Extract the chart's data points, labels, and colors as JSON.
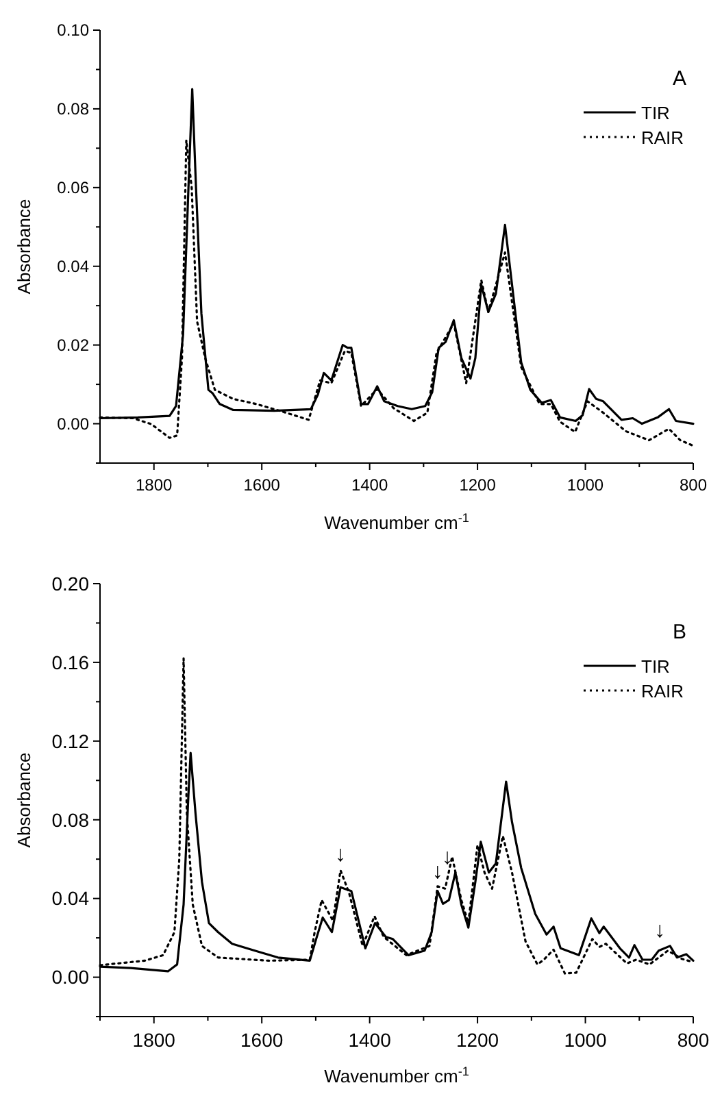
{
  "chart_data": [
    {
      "type": "line",
      "title": "A",
      "xlabel": "Wavenumber cm$^{-1}$",
      "ylabel": "Absorbance",
      "xlim": [
        1900,
        800
      ],
      "ylim": [
        -0.01,
        0.1
      ],
      "xticks": [
        1800,
        {
          "value": 1700,
          "label": null
        },
        1600,
        {
          "value": 1500,
          "label": null
        },
        1400,
        {
          "value": 1300,
          "label": null
        },
        1200,
        {
          "value": 1100,
          "label": null
        },
        1000,
        {
          "value": 900,
          "label": null
        },
        800
      ],
      "yticks": [
        {
          "value": -0.01,
          "label": null
        },
        {
          "value": 0,
          "label": "0.00"
        },
        {
          "value": 0.01,
          "label": null
        },
        0.02,
        {
          "value": 0.03,
          "label": null
        },
        0.04,
        {
          "value": 0.05,
          "label": null
        },
        0.06,
        {
          "value": 0.07,
          "label": null
        },
        0.08,
        {
          "value": 0.09,
          "label": null
        },
        {
          "value": 0.1,
          "label": "0.10"
        }
      ],
      "grid": false,
      "legend": "top right",
      "series": [
        {
          "name": "TIR",
          "color": "#000000",
          "line_style": "solid",
          "x": [
            1900,
            1830,
            1771,
            1759,
            1746,
            1736,
            1729,
            1722,
            1712,
            1699,
            1691,
            1678,
            1653,
            1577,
            1509,
            1496,
            1485,
            1471,
            1450,
            1441,
            1434,
            1416,
            1403,
            1386,
            1373,
            1348,
            1322,
            1297,
            1284,
            1272,
            1259,
            1244,
            1230,
            1213,
            1204,
            1193,
            1180,
            1166,
            1149,
            1136,
            1119,
            1102,
            1081,
            1064,
            1047,
            1018,
            1005,
            993,
            980,
            967,
            933,
            912,
            895,
            866,
            845,
            832,
            800
          ],
          "values": [
            0.0014,
            0.0016,
            0.002,
            0.0045,
            0.0226,
            0.06,
            0.085,
            0.06,
            0.028,
            0.0086,
            0.0077,
            0.005,
            0.0035,
            0.0033,
            0.0037,
            0.0074,
            0.0129,
            0.011,
            0.02,
            0.0193,
            0.0193,
            0.005,
            0.005,
            0.0095,
            0.0057,
            0.0045,
            0.0037,
            0.0045,
            0.008,
            0.0193,
            0.0208,
            0.0263,
            0.0167,
            0.0115,
            0.0167,
            0.0353,
            0.0284,
            0.033,
            0.0505,
            0.0353,
            0.0156,
            0.0086,
            0.0053,
            0.006,
            0.0016,
            0.0007,
            0.0022,
            0.0088,
            0.0063,
            0.0057,
            0.001,
            0.0014,
            0.0,
            0.0016,
            0.0037,
            0.0007,
            0.0
          ]
        },
        {
          "name": "RAIR",
          "color": "#000000",
          "line_style": "dotted",
          "x": [
            1900,
            1839,
            1805,
            1771,
            1757,
            1748,
            1740,
            1730,
            1720,
            1705,
            1687,
            1653,
            1610,
            1560,
            1513,
            1492,
            1471,
            1446,
            1434,
            1416,
            1386,
            1356,
            1318,
            1293,
            1276,
            1244,
            1221,
            1193,
            1180,
            1149,
            1119,
            1085,
            1064,
            1047,
            1019,
            996,
            967,
            925,
            882,
            845,
            824,
            800
          ],
          "values": [
            0.0016,
            0.0014,
            -0.0001,
            -0.0036,
            -0.003,
            0.0167,
            0.072,
            0.06,
            0.026,
            0.0167,
            0.0086,
            0.0063,
            0.005,
            0.003,
            0.001,
            0.011,
            0.0103,
            0.0185,
            0.018,
            0.0045,
            0.0088,
            0.004,
            0.0007,
            0.0028,
            0.018,
            0.0255,
            0.0103,
            0.0365,
            0.0284,
            0.0435,
            0.0144,
            0.005,
            0.005,
            0.0005,
            -0.0021,
            0.0057,
            0.0028,
            -0.0019,
            -0.0042,
            -0.0013,
            -0.0042,
            -0.0056
          ]
        }
      ]
    },
    {
      "type": "line",
      "title": "B",
      "xlabel": "Wavenumber cm$^{-1}$",
      "ylabel": "Absorbance",
      "xlim": [
        1900,
        800
      ],
      "ylim": [
        -0.02,
        0.2
      ],
      "xticks": [
        {
          "value": 1900,
          "label": null
        },
        1800,
        {
          "value": 1700,
          "label": null
        },
        1600,
        {
          "value": 1500,
          "label": null
        },
        1400,
        {
          "value": 1300,
          "label": null
        },
        1200,
        {
          "value": 1100,
          "label": null
        },
        1000,
        {
          "value": 900,
          "label": null
        },
        800
      ],
      "yticks": [
        {
          "value": -0.02,
          "label": null
        },
        {
          "value": 0,
          "label": "0.00"
        },
        {
          "value": 0.02,
          "label": null
        },
        0.04,
        {
          "value": 0.06,
          "label": null
        },
        0.08,
        {
          "value": 0.1,
          "label": null
        },
        0.12,
        {
          "value": 0.14,
          "label": null
        },
        0.16,
        {
          "value": 0.18,
          "label": null
        },
        {
          "value": 0.2,
          "label": "0.20"
        }
      ],
      "grid": false,
      "legend": "top right",
      "annotations": [
        {
          "text": "↓",
          "x": 1454,
          "y": 0.0555
        },
        {
          "text": "↓",
          "x": 1274,
          "y": 0.047
        },
        {
          "text": "↓",
          "x": 1256,
          "y": 0.054
        },
        {
          "text": "↓",
          "x": 862,
          "y": 0.017
        }
      ],
      "series": [
        {
          "name": "TIR",
          "color": "#000000",
          "line_style": "solid",
          "x": [
            1900,
            1843,
            1774,
            1757,
            1745,
            1736,
            1732,
            1723,
            1711,
            1698,
            1681,
            1655,
            1613,
            1570,
            1511,
            1498,
            1487,
            1470,
            1454,
            1447,
            1434,
            1408,
            1390,
            1370,
            1357,
            1328,
            1298,
            1285,
            1274,
            1264,
            1253,
            1241,
            1230,
            1217,
            1204,
            1194,
            1179,
            1166,
            1147,
            1136,
            1119,
            1093,
            1072,
            1059,
            1046,
            1012,
            989,
            974,
            966,
            936,
            919,
            909,
            894,
            877,
            864,
            843,
            830,
            813,
            800
          ],
          "values": [
            0.0054,
            0.0047,
            0.003,
            0.0065,
            0.037,
            0.093,
            0.114,
            0.0835,
            0.0485,
            0.0275,
            0.0229,
            0.017,
            0.0135,
            0.01,
            0.0084,
            0.0205,
            0.0303,
            0.0229,
            0.0457,
            0.045,
            0.0438,
            0.0147,
            0.0275,
            0.0205,
            0.0194,
            0.0112,
            0.0135,
            0.0229,
            0.0438,
            0.0373,
            0.0392,
            0.0532,
            0.0368,
            0.0252,
            0.0485,
            0.0688,
            0.0532,
            0.0578,
            0.0994,
            0.0788,
            0.0555,
            0.0322,
            0.0217,
            0.0257,
            0.0147,
            0.0112,
            0.0299,
            0.0224,
            0.0257,
            0.0147,
            0.01,
            0.0163,
            0.0089,
            0.0089,
            0.0135,
            0.0159,
            0.01,
            0.0117,
            0.0084
          ]
        },
        {
          "name": "RAIR",
          "color": "#000000",
          "line_style": "dotted",
          "x": [
            1900,
            1817,
            1783,
            1762,
            1753,
            1745,
            1739,
            1728,
            1711,
            1681,
            1587,
            1511,
            1502,
            1489,
            1468,
            1454,
            1438,
            1413,
            1391,
            1374,
            1332,
            1289,
            1274,
            1260,
            1247,
            1230,
            1217,
            1200,
            1187,
            1173,
            1153,
            1136,
            1111,
            1089,
            1077,
            1059,
            1038,
            1017,
            987,
            974,
            962,
            923,
            906,
            881,
            847,
            821,
            800
          ],
          "values": [
            0.0061,
            0.0084,
            0.0112,
            0.0229,
            0.06,
            0.162,
            0.0835,
            0.0369,
            0.0159,
            0.01,
            0.0084,
            0.0089,
            0.0229,
            0.0392,
            0.0287,
            0.0543,
            0.0427,
            0.0159,
            0.031,
            0.0205,
            0.0112,
            0.0159,
            0.0462,
            0.045,
            0.0613,
            0.0392,
            0.0275,
            0.0672,
            0.0532,
            0.045,
            0.0718,
            0.0532,
            0.0182,
            0.0065,
            0.0089,
            0.014,
            0.0019,
            0.0023,
            0.0194,
            0.0154,
            0.017,
            0.007,
            0.0089,
            0.0065,
            0.0135,
            0.0093,
            0.0077
          ]
        }
      ]
    }
  ]
}
